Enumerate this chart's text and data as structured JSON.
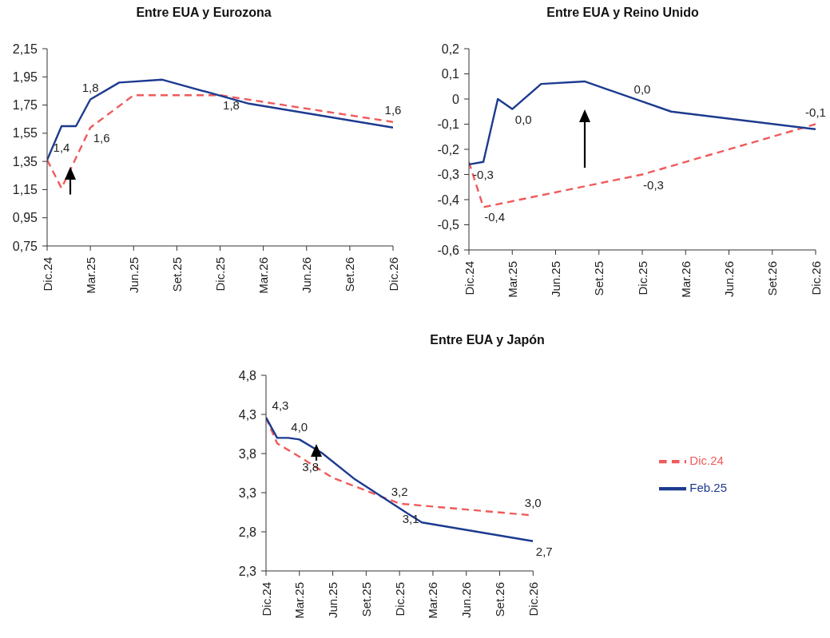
{
  "chart_data": [
    {
      "type": "line",
      "title": "Entre EUA y Eurozona",
      "xlim": [
        "2024-12",
        "2026-12"
      ],
      "xticks": [
        {
          "value": "2024-12",
          "label": "Dic.24"
        },
        {
          "value": "2025-03",
          "label": "Mar.25"
        },
        {
          "value": "2025-06",
          "label": "Jun.25"
        },
        {
          "value": "2025-09",
          "label": "Set.25"
        },
        {
          "value": "2025-12",
          "label": "Dic.25"
        },
        {
          "value": "2026-03",
          "label": "Mar.26"
        },
        {
          "value": "2026-06",
          "label": "Jun.26"
        },
        {
          "value": "2026-09",
          "label": "Set.26"
        },
        {
          "value": "2026-12",
          "label": "Dic.26"
        }
      ],
      "ylim": [
        0.75,
        2.15
      ],
      "yticks": [
        {
          "value": 0.75,
          "label": "0,75"
        },
        {
          "value": 0.95,
          "label": "0,95"
        },
        {
          "value": 1.15,
          "label": "1,15"
        },
        {
          "value": 1.35,
          "label": "1,35"
        },
        {
          "value": 1.55,
          "label": "1,55"
        },
        {
          "value": 1.75,
          "label": "1,75"
        },
        {
          "value": 1.95,
          "label": "1,95"
        },
        {
          "value": 2.15,
          "label": "2,15"
        }
      ],
      "series": [
        {
          "color": "#f05a5a",
          "line_style": "dashed",
          "x": [
            "2024-12",
            "2025-01",
            "2025-03",
            "2025-06",
            "2025-12",
            "2026-12"
          ],
          "values": [
            1.36,
            1.16,
            1.59,
            1.82,
            1.82,
            1.63
          ],
          "value_labels": [
            null,
            null,
            "1,6",
            null,
            "1,8",
            "1,6"
          ]
        },
        {
          "color": "#1c3a8f",
          "line_style": "solid",
          "x": [
            "2024-12",
            "2025-01",
            "2025-02",
            "2025-03",
            "2025-05",
            "2025-08",
            "2026-02",
            "2026-12"
          ],
          "values": [
            1.36,
            1.6,
            1.6,
            1.79,
            1.91,
            1.93,
            1.76,
            1.59
          ],
          "value_labels": [
            "1,4",
            null,
            null,
            "1,8",
            null,
            null,
            null,
            null
          ]
        }
      ]
    },
    {
      "type": "line",
      "title": "Entre EUA y Reino Unido",
      "xlim": [
        "2024-12",
        "2026-12"
      ],
      "xticks": [
        {
          "value": "2024-12",
          "label": "Dic.24"
        },
        {
          "value": "2025-03",
          "label": "Mar.25"
        },
        {
          "value": "2025-06",
          "label": "Jun.25"
        },
        {
          "value": "2025-09",
          "label": "Set.25"
        },
        {
          "value": "2025-12",
          "label": "Dic.25"
        },
        {
          "value": "2026-03",
          "label": "Mar.26"
        },
        {
          "value": "2026-06",
          "label": "Jun.26"
        },
        {
          "value": "2026-09",
          "label": "Set.26"
        },
        {
          "value": "2026-12",
          "label": "Dic.26"
        }
      ],
      "ylim": [
        -0.6,
        0.2
      ],
      "yticks": [
        {
          "value": -0.6,
          "label": "-0,6"
        },
        {
          "value": -0.5,
          "label": "-0,5"
        },
        {
          "value": -0.4,
          "label": "-0,4"
        },
        {
          "value": -0.3,
          "label": "-0,3"
        },
        {
          "value": -0.2,
          "label": "-0,2"
        },
        {
          "value": -0.1,
          "label": "-0,1"
        },
        0,
        {
          "value": 0.1,
          "label": "0,1"
        },
        {
          "value": 0.2,
          "label": "0,2"
        }
      ],
      "series": [
        {
          "color": "#f05a5a",
          "line_style": "dashed",
          "x": [
            "2024-12",
            "2025-01",
            "2025-12",
            "2026-12"
          ],
          "values": [
            -0.25,
            -0.43,
            -0.3,
            -0.1
          ],
          "value_labels": [
            null,
            "-0,4",
            "-0,3",
            "-0,1"
          ]
        },
        {
          "color": "#1c3a8f",
          "line_style": "solid",
          "x": [
            "2024-12",
            "2025-01",
            "2025-02",
            "2025-03",
            "2025-05",
            "2025-08",
            "2025-12",
            "2026-02",
            "2026-12"
          ],
          "values": [
            -0.26,
            -0.25,
            0.0,
            -0.04,
            0.06,
            0.07,
            -0.01,
            -0.05,
            -0.12
          ],
          "value_labels": [
            "-0,3",
            null,
            null,
            "0,0",
            null,
            null,
            "0,0",
            null,
            null
          ]
        }
      ]
    },
    {
      "type": "line",
      "title": "Entre EUA y Japón",
      "legend": "right",
      "xlim": [
        "2024-12",
        "2026-12"
      ],
      "xticks": [
        {
          "value": "2024-12",
          "label": "Dic.24"
        },
        {
          "value": "2025-03",
          "label": "Mar.25"
        },
        {
          "value": "2025-06",
          "label": "Jun.25"
        },
        {
          "value": "2025-09",
          "label": "Set.25"
        },
        {
          "value": "2025-12",
          "label": "Dic.25"
        },
        {
          "value": "2026-03",
          "label": "Mar.26"
        },
        {
          "value": "2026-06",
          "label": "Jun.26"
        },
        {
          "value": "2026-09",
          "label": "Set.26"
        },
        {
          "value": "2026-12",
          "label": "Dic.26"
        }
      ],
      "ylim": [
        2.3,
        4.8
      ],
      "yticks": [
        {
          "value": 2.3,
          "label": "2,3"
        },
        {
          "value": 2.8,
          "label": "2,8"
        },
        {
          "value": 3.3,
          "label": "3,3"
        },
        {
          "value": 3.8,
          "label": "3,8"
        },
        {
          "value": 4.3,
          "label": "4,3"
        },
        {
          "value": 4.8,
          "label": "4,8"
        }
      ],
      "series": [
        {
          "name": "Dic.24",
          "color": "#f05a5a",
          "line_style": "dashed",
          "x": [
            "2024-12",
            "2025-01",
            "2025-03",
            "2025-06",
            "2025-12",
            "2026-12"
          ],
          "values": [
            4.26,
            3.93,
            3.76,
            3.49,
            3.16,
            3.01
          ],
          "value_labels": [
            null,
            null,
            "3,8",
            null,
            "3,2",
            "3,0"
          ]
        },
        {
          "name": "Feb.25",
          "color": "#1c3a8f",
          "line_style": "solid",
          "x": [
            "2024-12",
            "2025-01",
            "2025-02",
            "2025-03",
            "2025-05",
            "2025-08",
            "2025-12",
            "2026-02",
            "2026-12"
          ],
          "values": [
            4.26,
            4.0,
            4.0,
            3.98,
            3.81,
            3.47,
            3.1,
            2.92,
            2.68
          ],
          "value_labels": [
            "4,3",
            null,
            null,
            "4,0",
            null,
            null,
            "3,1",
            null,
            "2,7"
          ]
        }
      ]
    }
  ]
}
